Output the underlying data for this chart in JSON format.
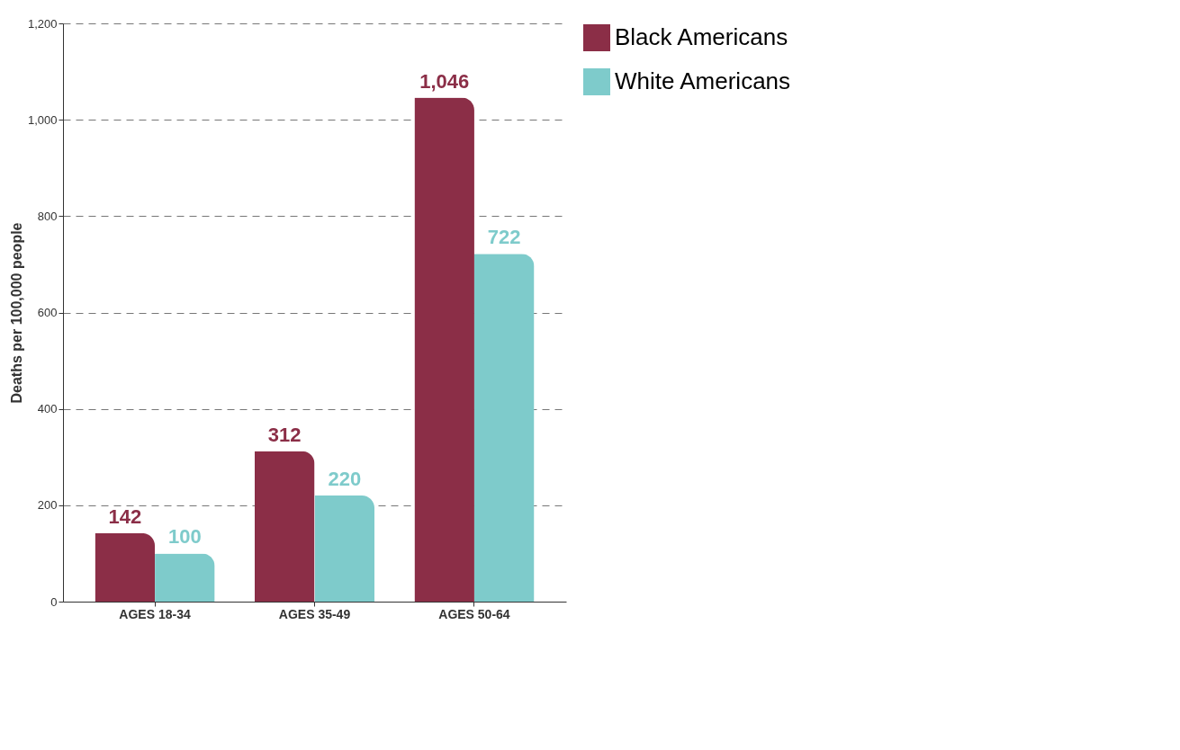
{
  "chart_data": {
    "type": "bar",
    "ylabel": "Deaths per 100,000 people",
    "categories": [
      "AGES 18-34",
      "AGES 35-49",
      "AGES 50-64"
    ],
    "series": [
      {
        "name": "Black Americans",
        "color": "#8b2e47",
        "values": [
          142,
          312,
          1046
        ],
        "value_labels": [
          "142",
          "312",
          "1,046"
        ]
      },
      {
        "name": "White Americans",
        "color": "#7ecbcb",
        "values": [
          100,
          220,
          722
        ],
        "value_labels": [
          "100",
          "220",
          "722"
        ]
      }
    ],
    "ylim": [
      0,
      1200
    ],
    "yticks": [
      0,
      200,
      400,
      600,
      800,
      {
        "value": 1000,
        "label": "1,000"
      },
      {
        "value": 1200,
        "label": "1,200"
      }
    ],
    "grid": "y",
    "legend": "top right"
  }
}
